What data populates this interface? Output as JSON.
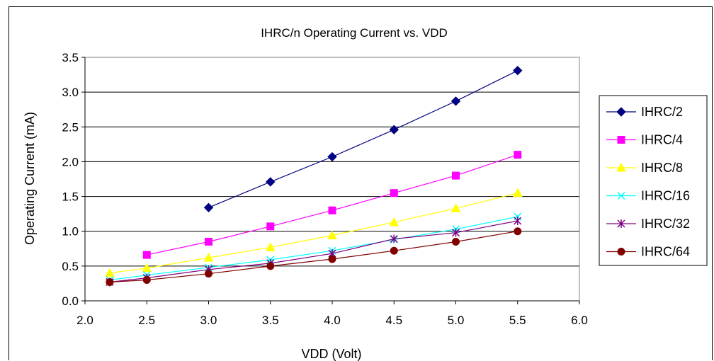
{
  "chart_data": {
    "type": "line",
    "title": "IHRC/n Operating Current vs. VDD",
    "xlabel": "VDD (Volt)",
    "ylabel": "Operating Current (mA)",
    "xlim": [
      2.0,
      6.0
    ],
    "ylim": [
      0.0,
      3.5
    ],
    "x_ticks": [
      "2.0",
      "2.5",
      "3.0",
      "3.5",
      "4.0",
      "4.5",
      "5.0",
      "5.5",
      "6.0"
    ],
    "y_ticks": [
      "0.0",
      "0.5",
      "1.0",
      "1.5",
      "2.0",
      "2.5",
      "3.0",
      "3.5"
    ],
    "grid": "horizontal",
    "legend_position": "right",
    "series": [
      {
        "name": "IHRC/2",
        "color": "#000080",
        "marker": "diamond",
        "x": [
          3.0,
          3.5,
          4.0,
          4.5,
          5.0,
          5.5
        ],
        "y": [
          1.34,
          1.71,
          2.07,
          2.46,
          2.87,
          3.31
        ]
      },
      {
        "name": "IHRC/4",
        "color": "#FF00FF",
        "marker": "square",
        "x": [
          2.5,
          3.0,
          3.5,
          4.0,
          4.5,
          5.0,
          5.5
        ],
        "y": [
          0.66,
          0.85,
          1.07,
          1.3,
          1.55,
          1.8,
          2.1
        ]
      },
      {
        "name": "IHRC/8",
        "color": "#FFFF00",
        "marker": "triangle",
        "x": [
          2.2,
          2.5,
          3.0,
          3.5,
          4.0,
          4.5,
          5.0,
          5.5
        ],
        "y": [
          0.4,
          0.47,
          0.62,
          0.77,
          0.94,
          1.13,
          1.33,
          1.55
        ]
      },
      {
        "name": "IHRC/16",
        "color": "#00FFFF",
        "marker": "x",
        "x": [
          2.2,
          2.5,
          3.0,
          3.5,
          4.0,
          4.5,
          5.0,
          5.5
        ],
        "y": [
          0.3,
          0.37,
          0.48,
          0.59,
          0.72,
          0.88,
          1.03,
          1.21
        ]
      },
      {
        "name": "IHRC/32",
        "color": "#800080",
        "marker": "star",
        "x": [
          2.2,
          2.5,
          3.0,
          3.5,
          4.0,
          4.5,
          5.0,
          5.5
        ],
        "y": [
          0.27,
          0.33,
          0.45,
          0.54,
          0.68,
          0.89,
          0.98,
          1.15
        ]
      },
      {
        "name": "IHRC/64",
        "color": "#800000",
        "marker": "circle",
        "x": [
          2.2,
          2.5,
          3.0,
          3.5,
          4.0,
          4.5,
          5.0,
          5.5
        ],
        "y": [
          0.27,
          0.3,
          0.39,
          0.5,
          0.6,
          0.72,
          0.85,
          1.0
        ]
      }
    ]
  }
}
